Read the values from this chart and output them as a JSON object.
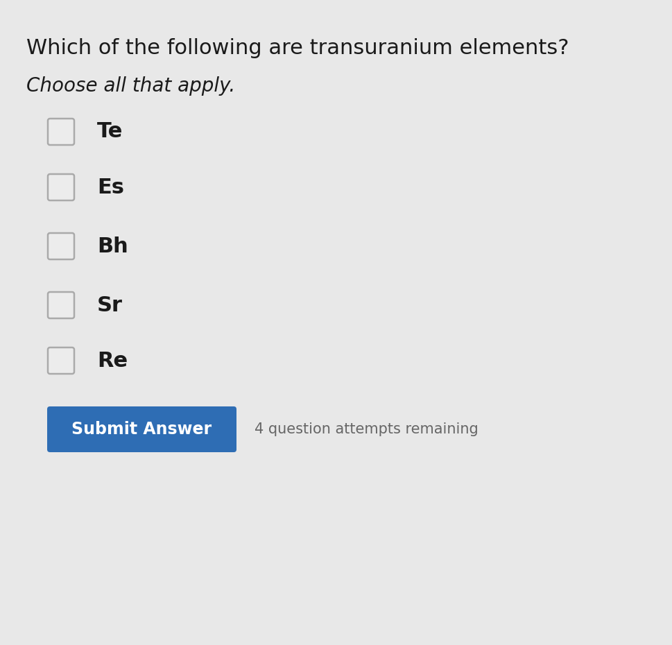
{
  "title": "Which of the following are transuranium elements?",
  "subtitle": "Choose all that apply.",
  "options": [
    "Te",
    "Es",
    "Bh",
    "Sr",
    "Re"
  ],
  "background_color": "#e8e8e8",
  "title_fontsize": 22,
  "subtitle_fontsize": 20,
  "option_fontsize": 22,
  "button_color": "#2e6db4",
  "button_text": "Submit Answer",
  "button_text_color": "#ffffff",
  "button_fontsize": 17,
  "attempts_text": "4 question attempts remaining",
  "attempts_fontsize": 15,
  "attempts_color": "#666666",
  "text_color": "#1a1a1a"
}
